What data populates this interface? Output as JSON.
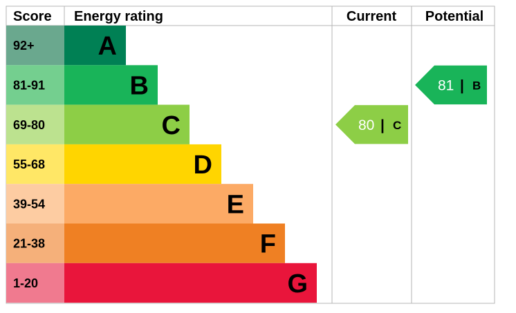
{
  "chart_data": {
    "type": "bar",
    "headers": {
      "score": "Score",
      "rating": "Energy rating",
      "current": "Current",
      "potential": "Potential"
    },
    "bands": [
      {
        "score": "92+",
        "letter": "A",
        "color": "#008054",
        "score_bg": "#6aa88e"
      },
      {
        "score": "81-91",
        "letter": "B",
        "color": "#19b459",
        "score_bg": "#74cf8f"
      },
      {
        "score": "69-80",
        "letter": "C",
        "color": "#8dce46",
        "score_bg": "#bce28f"
      },
      {
        "score": "55-68",
        "letter": "D",
        "color": "#ffd500",
        "score_bg": "#ffe766"
      },
      {
        "score": "39-54",
        "letter": "E",
        "color": "#fcaa65",
        "score_bg": "#fdcca2"
      },
      {
        "score": "21-38",
        "letter": "F",
        "color": "#ef8023",
        "score_bg": "#f5b07a"
      },
      {
        "score": "1-20",
        "letter": "G",
        "color": "#e9153b",
        "score_bg": "#f07a8f"
      }
    ],
    "current": {
      "value": 80,
      "letter": "C",
      "color": "#8dce46"
    },
    "potential": {
      "value": 81,
      "letter": "B",
      "color": "#19b459"
    }
  }
}
